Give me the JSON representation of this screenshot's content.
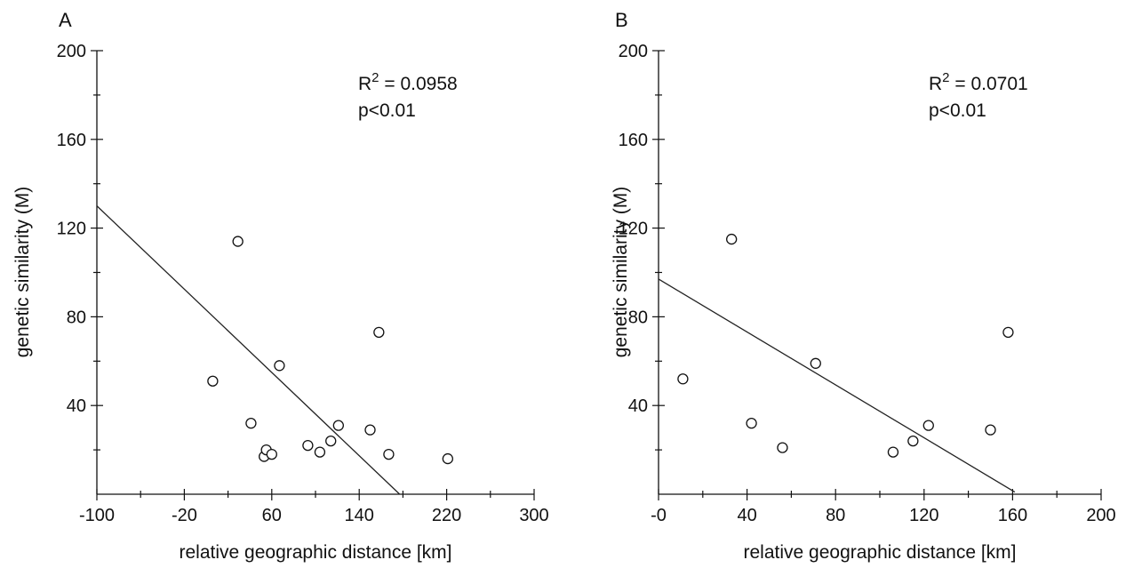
{
  "colors": {
    "axis": "#111111",
    "marker_stroke": "#111111",
    "marker_fill": "#ffffff",
    "line": "#222222",
    "background": "#ffffff"
  },
  "chart_data": [
    {
      "type": "scatter",
      "panel_label": "A",
      "xlabel": "relative geographic distance [km]",
      "ylabel": "genetic similarity (M)",
      "xlim": [
        -100,
        300
      ],
      "ylim": [
        0,
        200
      ],
      "xticks": [
        -100,
        -20,
        60,
        140,
        220,
        300
      ],
      "xtick_labels": [
        "-100",
        "-20",
        "60",
        "140",
        "220",
        "300"
      ],
      "yticks": [
        40,
        80,
        120,
        160,
        200
      ],
      "ytick_labels": [
        "40",
        "80",
        "120",
        "160",
        "200"
      ],
      "annotation": {
        "r2_prefix": "R",
        "r2_sup": "2",
        "r2_value": " = 0.0958",
        "p": "p<0.01"
      },
      "points": [
        {
          "x": 6,
          "y": 51
        },
        {
          "x": 29,
          "y": 114
        },
        {
          "x": 41,
          "y": 32
        },
        {
          "x": 53,
          "y": 17
        },
        {
          "x": 55,
          "y": 20
        },
        {
          "x": 60,
          "y": 18
        },
        {
          "x": 67,
          "y": 58
        },
        {
          "x": 93,
          "y": 22
        },
        {
          "x": 104,
          "y": 19
        },
        {
          "x": 114,
          "y": 24
        },
        {
          "x": 121,
          "y": 31
        },
        {
          "x": 150,
          "y": 29
        },
        {
          "x": 158,
          "y": 73
        },
        {
          "x": 167,
          "y": 18
        },
        {
          "x": 221,
          "y": 16
        }
      ],
      "fit_line": {
        "x": [
          -100,
          177
        ],
        "y": [
          130,
          0
        ]
      }
    },
    {
      "type": "scatter",
      "panel_label": "B",
      "xlabel": "relative geographic distance [km]",
      "ylabel": "genetic similarity (M)",
      "xlim": [
        0,
        200
      ],
      "ylim": [
        0,
        200
      ],
      "xticks": [
        0,
        40,
        80,
        120,
        160,
        200
      ],
      "xtick_labels": [
        "-0",
        "40",
        "80",
        "120",
        "160",
        "200"
      ],
      "yticks": [
        40,
        80,
        120,
        160,
        200
      ],
      "ytick_labels": [
        "40",
        "80",
        "120",
        "160",
        "200"
      ],
      "annotation": {
        "r2_prefix": "R",
        "r2_sup": "2",
        "r2_value": " = 0.0701",
        "p": "p<0.01"
      },
      "points": [
        {
          "x": 11,
          "y": 52
        },
        {
          "x": 33,
          "y": 115
        },
        {
          "x": 42,
          "y": 32
        },
        {
          "x": 56,
          "y": 21
        },
        {
          "x": 71,
          "y": 59
        },
        {
          "x": 106,
          "y": 19
        },
        {
          "x": 115,
          "y": 24
        },
        {
          "x": 122,
          "y": 31
        },
        {
          "x": 150,
          "y": 29
        },
        {
          "x": 158,
          "y": 73
        }
      ],
      "fit_line": {
        "x": [
          0,
          161
        ],
        "y": [
          97,
          1
        ]
      }
    }
  ]
}
